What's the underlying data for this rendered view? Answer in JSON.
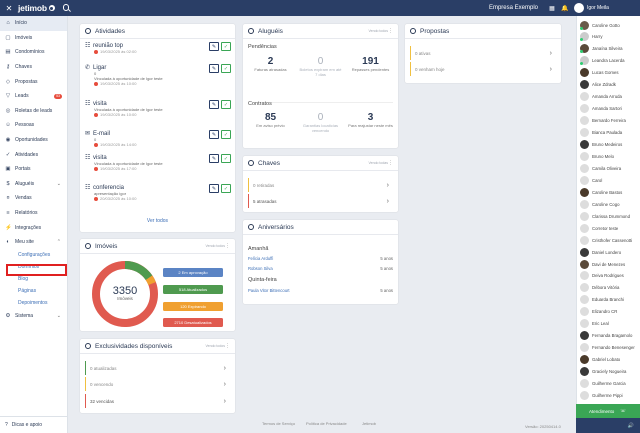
{
  "topbar": {
    "brand": "jetimob",
    "company": "Empresa Exemplo",
    "user": "Igor Meila"
  },
  "sidebar": {
    "items": [
      {
        "label": "Início",
        "icon": "home-icon"
      },
      {
        "label": "Imóveis",
        "icon": "house-icon"
      },
      {
        "label": "Condomínios",
        "icon": "building-icon"
      },
      {
        "label": "Chaves",
        "icon": "key-icon"
      },
      {
        "label": "Propostas",
        "icon": "tag-icon"
      },
      {
        "label": "Leads",
        "icon": "funnel-icon",
        "badge": "53"
      },
      {
        "label": "Roletas de leads",
        "icon": "roulette-icon"
      },
      {
        "label": "Pessoas",
        "icon": "people-icon"
      },
      {
        "label": "Oportunidades",
        "icon": "target-icon"
      },
      {
        "label": "Atividades",
        "icon": "check-circle-icon"
      },
      {
        "label": "Portais",
        "icon": "portal-icon"
      },
      {
        "label": "Aluguéis",
        "icon": "rent-icon"
      },
      {
        "label": "Vendas",
        "icon": "sales-icon"
      },
      {
        "label": "Relatórios",
        "icon": "report-icon"
      },
      {
        "label": "Integrações",
        "icon": "plug-icon"
      },
      {
        "label": "Meu site",
        "icon": "site-icon"
      }
    ],
    "subitems": [
      "Configurações",
      "Domínios",
      "Blog",
      "Páginas",
      "Depoimentos"
    ],
    "sistema": "Sistema",
    "dicas": "Dicas e apoio"
  },
  "atividades": {
    "title": "Atividades",
    "items": [
      {
        "title": "reunião top",
        "sub": "",
        "date": "19/03/2025 às 02:00"
      },
      {
        "title": "Ligar",
        "sub": "Vinculada à oportunidade de Igor teste",
        "extra": "0",
        "date": "19/03/2025 às 10:00"
      },
      {
        "title": "visita",
        "sub": "Vinculada à oportunidade de Igor teste",
        "date": "19/03/2025 às 10:00"
      },
      {
        "title": "E-mail",
        "sub": "",
        "extra": "0",
        "date": "19/03/2025 às 14:00"
      },
      {
        "title": "visita",
        "sub": "Vinculada à oportunidade de Igor teste",
        "date": "19/03/2025 às 17:00"
      },
      {
        "title": "conferencia",
        "sub": "apresentação igor",
        "date": "20/03/2025 às 10:00"
      }
    ],
    "ver_todos": "Ver todos"
  },
  "alugueis": {
    "title": "Aluguéis",
    "ver": "Vendo todos",
    "pendencias": "Pendências",
    "stats1": [
      {
        "n": "2",
        "l": "Faturas atrasadas"
      },
      {
        "n": "0",
        "l": "Boletos expiram em até 7 dias",
        "g": true
      },
      {
        "n": "191",
        "l": "Repasses pendentes"
      }
    ],
    "contratos": "Contratos",
    "stats2": [
      {
        "n": "85",
        "l": "Em aviso prévio"
      },
      {
        "n": "0",
        "l": "Garantias locatícias vencendo",
        "g": true
      },
      {
        "n": "3",
        "l": "Para reajustar neste mês"
      }
    ]
  },
  "propostas": {
    "title": "Propostas",
    "rows": [
      "0 ativas",
      "0 venham hoje"
    ]
  },
  "chaves": {
    "title": "Chaves",
    "ver": "Vendo todas",
    "rows": [
      "0 retiradas",
      "5 atrasadas"
    ]
  },
  "aniversarios": {
    "title": "Aniversários",
    "amanha": "Amanhã",
    "quinta": "Quinta-feira",
    "p1": [
      {
        "name": "Felícia Arduffi",
        "age": "5 anos"
      },
      {
        "name": "Robson Silva",
        "age": "5 anos"
      }
    ],
    "p2": [
      {
        "name": "Paula Vitor Bittencourt",
        "age": "5 anos"
      }
    ]
  },
  "imoveis": {
    "title": "Imóveis",
    "ver": "Vendo todos",
    "total": "3350",
    "total_label": "Imóveis",
    "legend": [
      {
        "label": "2 Em aprovação",
        "color": "#5b84c4"
      },
      {
        "label": "518 Atualizados",
        "color": "#4f9a4f"
      },
      {
        "label": "120 Expirando",
        "color": "#f0a030"
      },
      {
        "label": "2710 Desatualizados",
        "color": "#e05a4f"
      }
    ]
  },
  "exclusividades": {
    "title": "Exclusividades disponíveis",
    "ver": "Vendo todos",
    "rows": [
      "0 atualizadas",
      "0 vencendo",
      "32 vencidas"
    ]
  },
  "footer": {
    "links": [
      "Termos de Serviço",
      "Política de Privacidade",
      "Jetimob"
    ],
    "version": "Versão: 20250414.0"
  },
  "people": [
    {
      "name": "Caroline Gotto",
      "c": "#6a5a4a",
      "on": true
    },
    {
      "name": "Harry",
      "c": "#ccc",
      "on": true
    },
    {
      "name": "Janaína Silveira",
      "c": "#5a4a3a",
      "on": true
    },
    {
      "name": "Leandra Lacerda",
      "c": "#ccc",
      "on": true
    },
    {
      "name": "Lucas Gomes",
      "c": "#4a3a2a",
      "on": false
    },
    {
      "name": "Alice Zdradk",
      "c": "#3a3a3a",
      "on": false
    },
    {
      "name": "Amanda Arruda",
      "c": "#ddd",
      "on": false
    },
    {
      "name": "Amanda Sartori",
      "c": "#ddd",
      "on": false
    },
    {
      "name": "Bernardo Ferreira",
      "c": "#ddd",
      "on": false
    },
    {
      "name": "Bianca Paulada",
      "c": "#ddd",
      "on": false
    },
    {
      "name": "Bruno Medeiros",
      "c": "#3a3a3a",
      "on": false
    },
    {
      "name": "Bruno Melo",
      "c": "#ddd",
      "on": false
    },
    {
      "name": "Camila Oliveira",
      "c": "#ddd",
      "on": false
    },
    {
      "name": "Carol",
      "c": "#ddd",
      "on": false
    },
    {
      "name": "Caroline Bastos",
      "c": "#4a3a2a",
      "on": false
    },
    {
      "name": "Caroline Cogo",
      "c": "#ddd",
      "on": false
    },
    {
      "name": "Clarissa Drummond",
      "c": "#ddd",
      "on": false
    },
    {
      "name": "Corretor teste",
      "c": "#ddd",
      "on": false
    },
    {
      "name": "Cristhofer Cassenotti",
      "c": "#ddd",
      "on": false
    },
    {
      "name": "Daniel Londero",
      "c": "#3a3a3a",
      "on": false
    },
    {
      "name": "Davi de Menezes",
      "c": "#5a4a3a",
      "on": false
    },
    {
      "name": "Deiva Rodrigues",
      "c": "#ddd",
      "on": false
    },
    {
      "name": "Débora Vitória",
      "c": "#ddd",
      "on": false
    },
    {
      "name": "Eduarda Branchi",
      "c": "#ddd",
      "on": false
    },
    {
      "name": "Elizandro CR",
      "c": "#ddd",
      "on": false
    },
    {
      "name": "Eric Leal",
      "c": "#ddd",
      "on": false
    },
    {
      "name": "Fernanda Bragamolo",
      "c": "#3a3a3a",
      "on": false
    },
    {
      "name": "Fernando Benesenger",
      "c": "#ddd",
      "on": false
    },
    {
      "name": "Gabriel Lobato",
      "c": "#4a3a2a",
      "on": false
    },
    {
      "name": "Graciely Nogueira",
      "c": "#3a3a3a",
      "on": false
    },
    {
      "name": "Guilherme Garcia",
      "c": "#ddd",
      "on": false
    },
    {
      "name": "Guilherme Pippi",
      "c": "#ddd",
      "on": false
    }
  ],
  "atendimento": "Atendimento"
}
